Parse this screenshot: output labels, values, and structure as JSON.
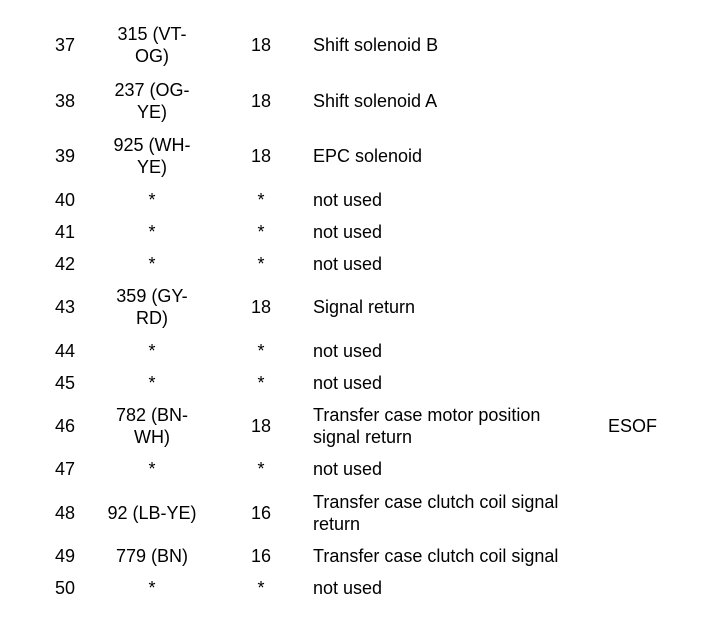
{
  "rows": [
    {
      "pin": "37",
      "circuit": "315 (VT-\nOG)",
      "gauge": "18",
      "description": "Shift solenoid B",
      "note": ""
    },
    {
      "pin": "38",
      "circuit": "237 (OG-\nYE)",
      "gauge": "18",
      "description": "Shift solenoid A",
      "note": ""
    },
    {
      "pin": "39",
      "circuit": "925 (WH-\nYE)",
      "gauge": "18",
      "description": "EPC solenoid",
      "note": ""
    },
    {
      "pin": "40",
      "circuit": "*",
      "gauge": "*",
      "description": "not used",
      "note": ""
    },
    {
      "pin": "41",
      "circuit": "*",
      "gauge": "*",
      "description": "not used",
      "note": ""
    },
    {
      "pin": "42",
      "circuit": "*",
      "gauge": "*",
      "description": "not used",
      "note": ""
    },
    {
      "pin": "43",
      "circuit": "359 (GY-\nRD)",
      "gauge": "18",
      "description": "Signal return",
      "note": ""
    },
    {
      "pin": "44",
      "circuit": "*",
      "gauge": "*",
      "description": "not used",
      "note": ""
    },
    {
      "pin": "45",
      "circuit": "*",
      "gauge": "*",
      "description": "not used",
      "note": ""
    },
    {
      "pin": "46",
      "circuit": "782 (BN-\nWH)",
      "gauge": "18",
      "description": "Transfer case motor position\nsignal return",
      "note": "ESOF"
    },
    {
      "pin": "47",
      "circuit": "*",
      "gauge": "*",
      "description": "not used",
      "note": ""
    },
    {
      "pin": "48",
      "circuit": "92 (LB-YE)",
      "gauge": "16",
      "description": "Transfer case clutch coil signal\nreturn",
      "note": ""
    },
    {
      "pin": "49",
      "circuit": "779 (BN)",
      "gauge": "16",
      "description": "Transfer case clutch coil signal",
      "note": ""
    },
    {
      "pin": "50",
      "circuit": "*",
      "gauge": "*",
      "description": "not used",
      "note": ""
    }
  ]
}
